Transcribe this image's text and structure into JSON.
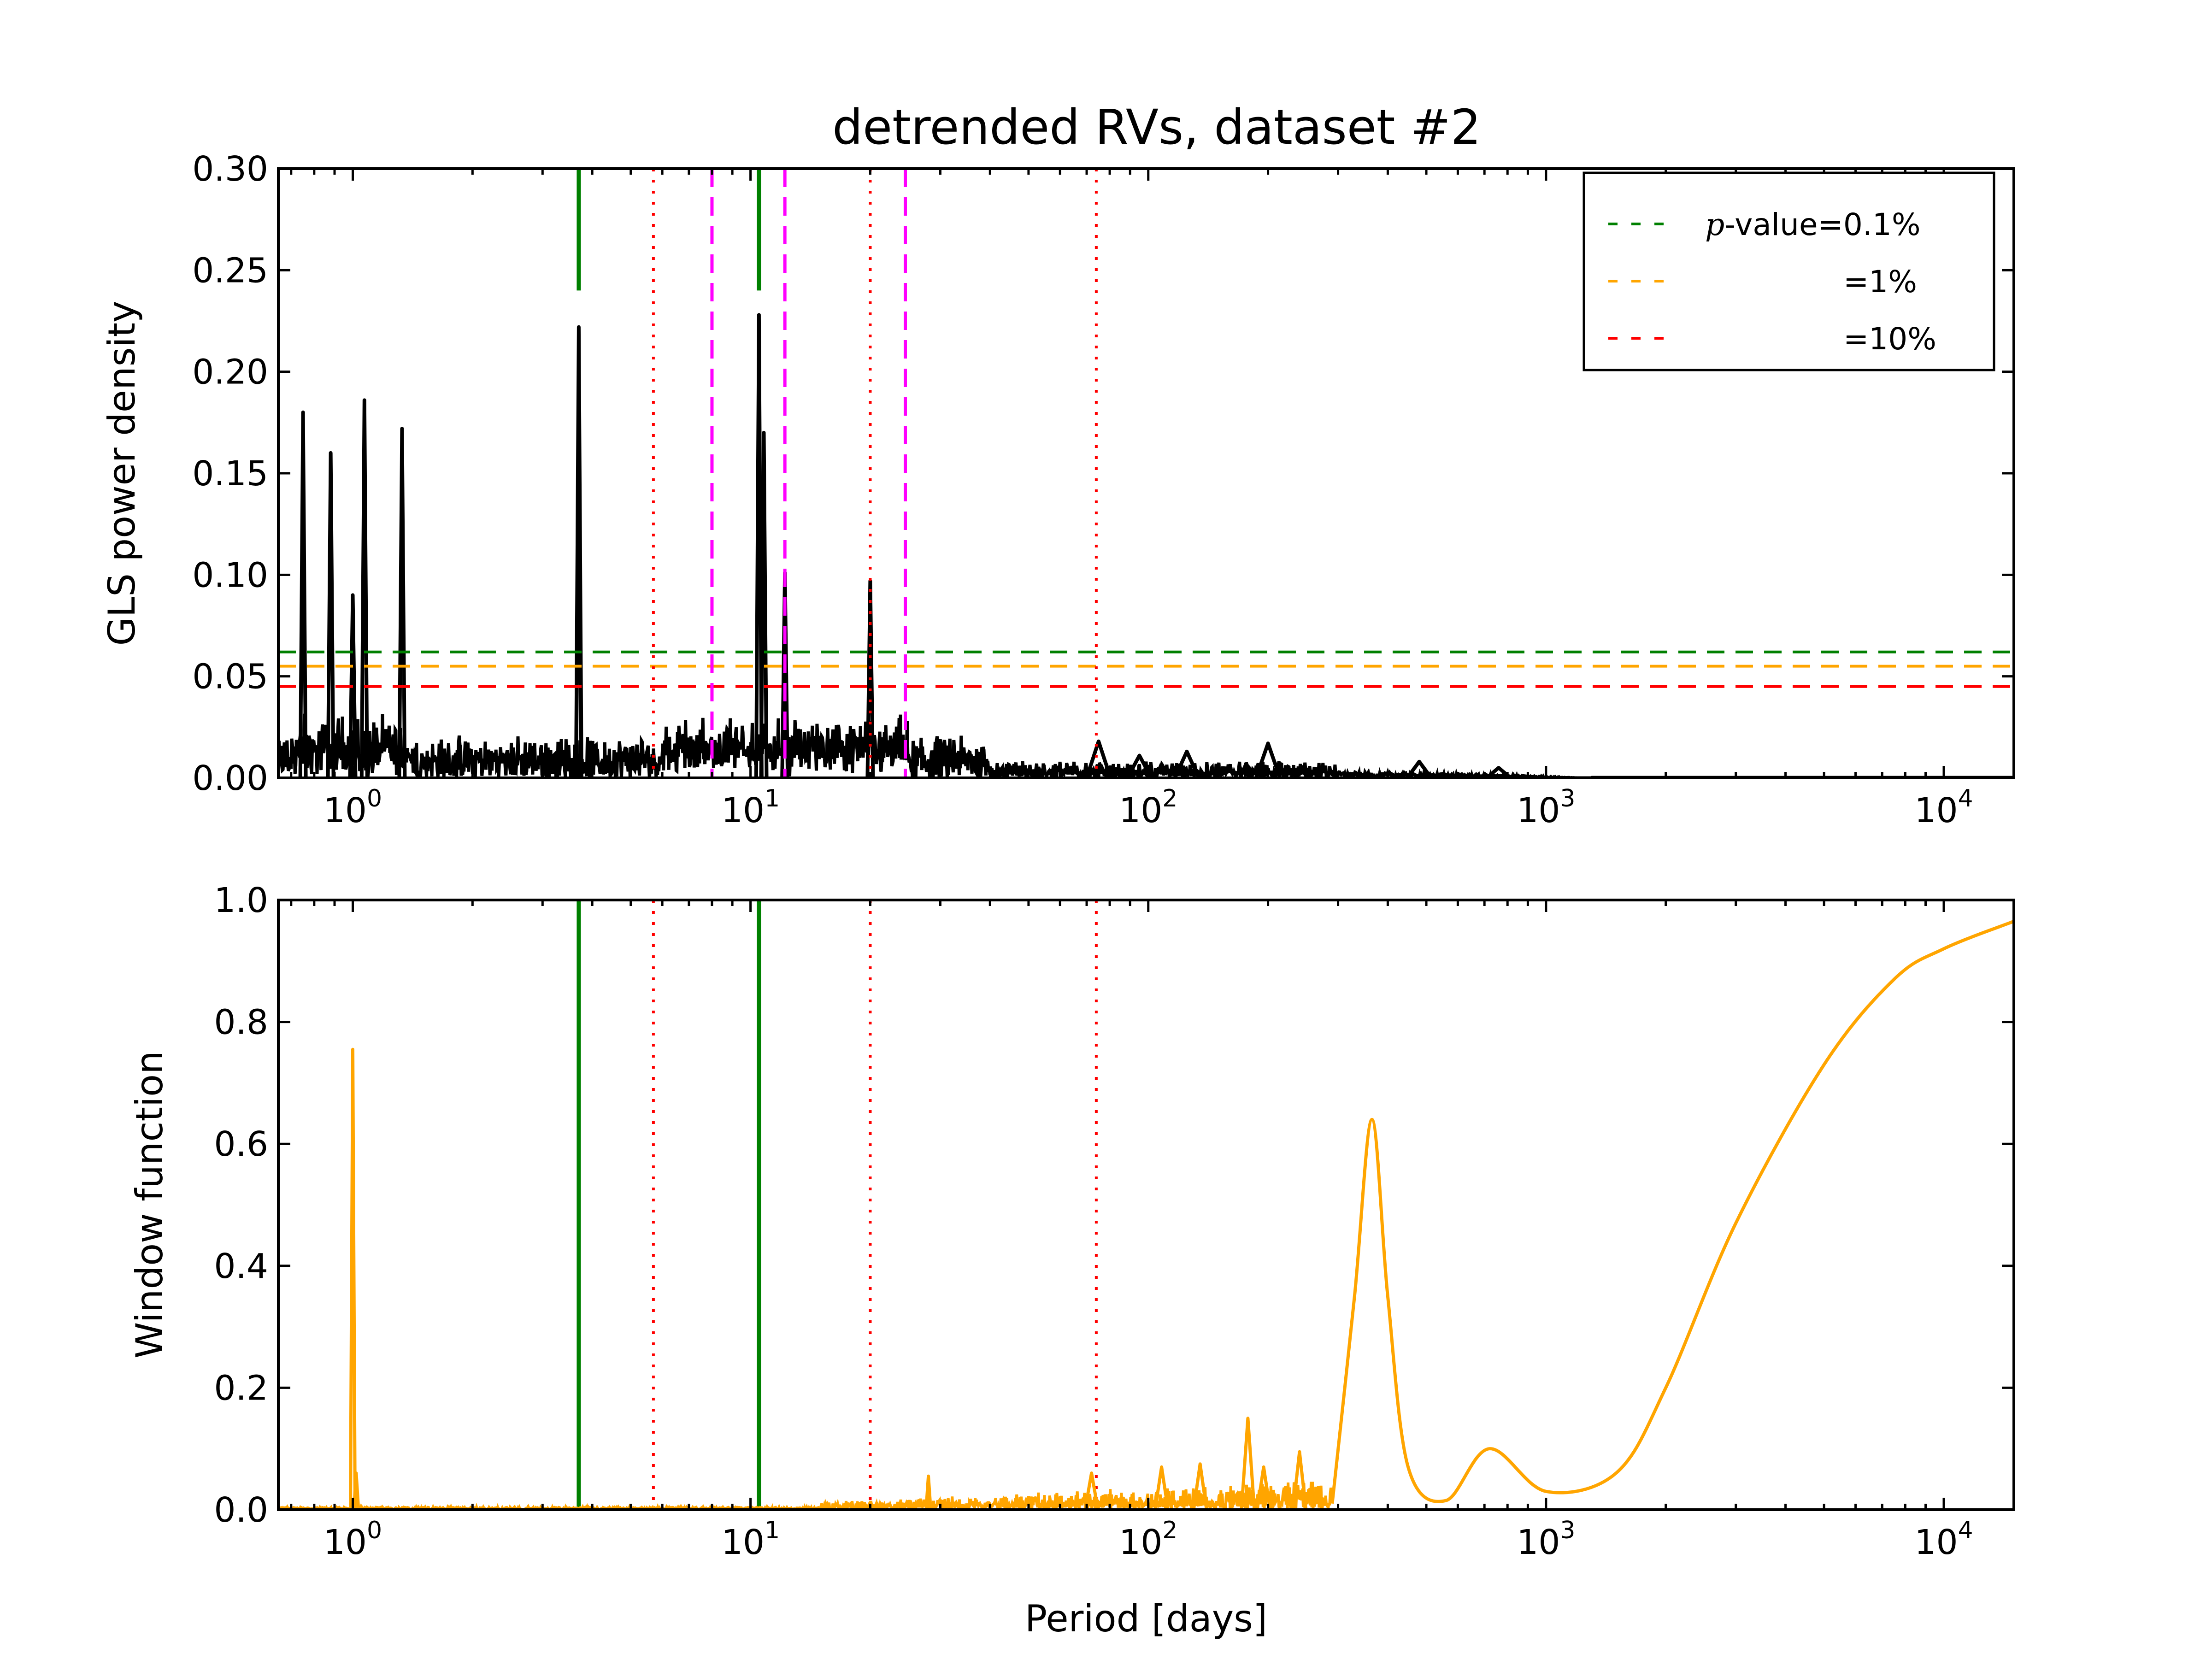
{
  "chart_data": [
    {
      "type": "line",
      "title": "detrended RVs, dataset #2",
      "xlabel": "",
      "ylabel": "GLS power density",
      "xscale": "log",
      "xlim": [
        0.65,
        15000
      ],
      "ylim": [
        0,
        0.3
      ],
      "xticks": [
        1,
        10,
        100,
        1000,
        10000
      ],
      "xtick_labels": [
        {
          "base": "10",
          "exp": "0"
        },
        {
          "base": "10",
          "exp": "1"
        },
        {
          "base": "10",
          "exp": "2"
        },
        {
          "base": "10",
          "exp": "3"
        },
        {
          "base": "10",
          "exp": "4"
        }
      ],
      "yticks": [
        0,
        0.05,
        0.1,
        0.15,
        0.2,
        0.25,
        0.3
      ],
      "ytick_labels": [
        "0.00",
        "0.05",
        "0.10",
        "0.15",
        "0.20",
        "0.25",
        "0.30"
      ],
      "grid": false,
      "legend_position": "top-right",
      "legend": [
        {
          "label_math": "p",
          "label": "-value=0.1%",
          "color": "#008000",
          "dash": "dashed"
        },
        {
          "label_math": "",
          "label": "=1%",
          "color": "#ffa500",
          "dash": "dashed"
        },
        {
          "label_math": "",
          "label": "=10%",
          "color": "#ff0000",
          "dash": "dashed"
        }
      ],
      "thresholds": [
        {
          "value": 0.062,
          "color": "#008000"
        },
        {
          "value": 0.055,
          "color": "#ffa500"
        },
        {
          "value": 0.045,
          "color": "#ff0000"
        }
      ],
      "series_color": "#000000",
      "peaks": [
        {
          "period": 0.75,
          "power": 0.18
        },
        {
          "period": 0.88,
          "power": 0.16
        },
        {
          "period": 1.0,
          "power": 0.09
        },
        {
          "period": 1.07,
          "power": 0.186
        },
        {
          "period": 1.33,
          "power": 0.172
        },
        {
          "period": 3.7,
          "power": 0.222
        },
        {
          "period": 3.7,
          "power": 0.14
        },
        {
          "period": 10.5,
          "power": 0.228
        },
        {
          "period": 10.8,
          "power": 0.17
        },
        {
          "period": 12.2,
          "power": 0.101
        },
        {
          "period": 20.0,
          "power": 0.097
        },
        {
          "period": 75.0,
          "power": 0.018
        },
        {
          "period": 95.0,
          "power": 0.011
        },
        {
          "period": 125.0,
          "power": 0.013
        },
        {
          "period": 200.0,
          "power": 0.017
        },
        {
          "period": 480.0,
          "power": 0.008
        },
        {
          "period": 760.0,
          "power": 0.005
        }
      ],
      "vlines_green": [
        3.7,
        10.5
      ],
      "vlines_red_dotted": [
        5.7,
        20.0,
        74.0
      ],
      "vlines_magenta_dashed": [
        8.0,
        12.2,
        24.5
      ]
    },
    {
      "type": "line",
      "title": "",
      "xlabel": "Period [days]",
      "ylabel": "Window function",
      "xscale": "log",
      "xlim": [
        0.65,
        15000
      ],
      "ylim": [
        0,
        1.0
      ],
      "xticks": [
        1,
        10,
        100,
        1000,
        10000
      ],
      "xtick_labels": [
        {
          "base": "10",
          "exp": "0"
        },
        {
          "base": "10",
          "exp": "1"
        },
        {
          "base": "10",
          "exp": "2"
        },
        {
          "base": "10",
          "exp": "3"
        },
        {
          "base": "10",
          "exp": "4"
        }
      ],
      "yticks": [
        0,
        0.2,
        0.4,
        0.6,
        0.8,
        1.0
      ],
      "ytick_labels": [
        "0.0",
        "0.2",
        "0.4",
        "0.6",
        "0.8",
        "1.0"
      ],
      "grid": false,
      "series_color": "#ffa500",
      "peaks": [
        {
          "period": 1.0,
          "power": 0.755
        },
        {
          "period": 1.02,
          "power": 0.06
        },
        {
          "period": 28.0,
          "power": 0.055
        },
        {
          "period": 72.0,
          "power": 0.06
        },
        {
          "period": 108.0,
          "power": 0.07
        },
        {
          "period": 135.0,
          "power": 0.075
        },
        {
          "period": 178.0,
          "power": 0.15
        },
        {
          "period": 195.0,
          "power": 0.07
        },
        {
          "period": 240.0,
          "power": 0.095
        }
      ],
      "curve": [
        {
          "period": 290,
          "power": 0.01
        },
        {
          "period": 330,
          "power": 0.35
        },
        {
          "period": 365,
          "power": 0.64
        },
        {
          "period": 400,
          "power": 0.35
        },
        {
          "period": 450,
          "power": 0.07
        },
        {
          "period": 560,
          "power": 0.015
        },
        {
          "period": 720,
          "power": 0.1
        },
        {
          "period": 1000,
          "power": 0.03
        },
        {
          "period": 1500,
          "power": 0.06
        },
        {
          "period": 2000,
          "power": 0.2
        },
        {
          "period": 3000,
          "power": 0.47
        },
        {
          "period": 5000,
          "power": 0.73
        },
        {
          "period": 7500,
          "power": 0.87
        },
        {
          "period": 10000,
          "power": 0.92
        },
        {
          "period": 15000,
          "power": 0.965
        }
      ],
      "vlines_green": [
        3.7,
        10.5
      ],
      "vlines_red_dotted": [
        5.7,
        20.0,
        74.0
      ]
    }
  ]
}
